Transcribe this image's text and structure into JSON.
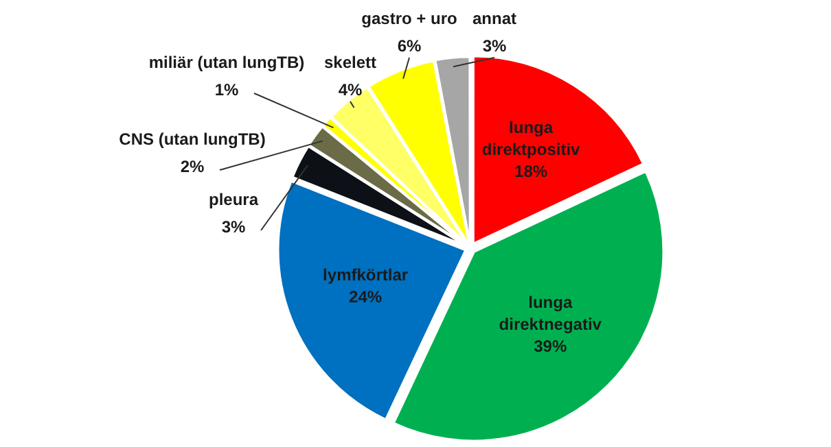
{
  "chart_data": {
    "type": "pie",
    "categories": [
      "lunga direktpositiv",
      "lunga direktnegativ",
      "lymfkörtlar",
      "pleura",
      "CNS (utan lungTB)",
      "miliär (utan lungTB)",
      "skelett",
      "gastro + uro",
      "annat"
    ],
    "values": [
      18,
      39,
      24,
      3,
      2,
      1,
      4,
      6,
      3
    ],
    "value_labels": [
      "18%",
      "39%",
      "24%",
      "3%",
      "2%",
      "1%",
      "4%",
      "6%",
      "3%"
    ],
    "colors": [
      "#ff0000",
      "#00b050",
      "#0070c0",
      "#0d1117",
      "#6b6b47",
      "#ffff00",
      "#ffff66",
      "#ffff00",
      "#a6a6a6"
    ],
    "legend": false
  }
}
